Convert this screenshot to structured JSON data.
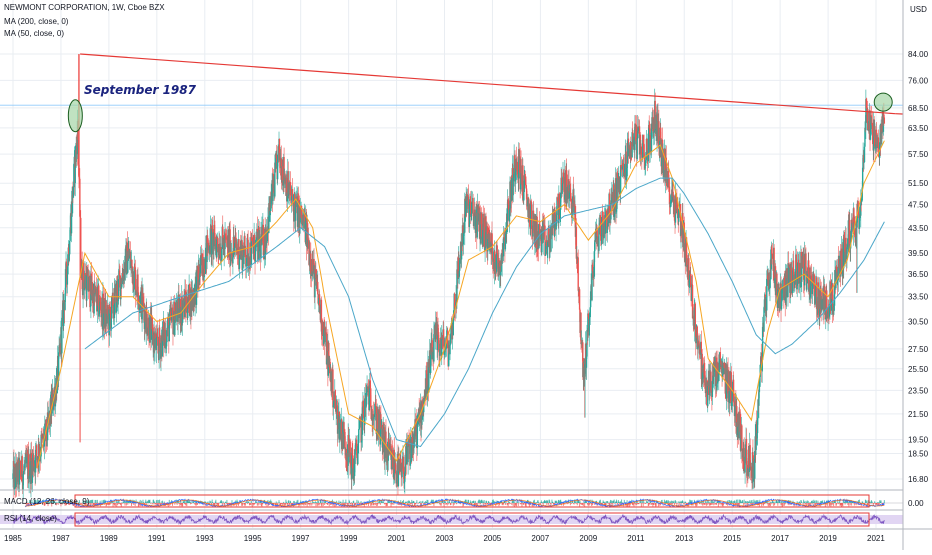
{
  "legend": {
    "symbol": "NEWMONT CORPORATION, 1W, Cboe BZX",
    "ma200": "MA (200, close, 0)",
    "ma50": "MA (50, close, 0)",
    "macd": "MACD (12, 26, close, 9)",
    "rsi": "RSI (14, close)"
  },
  "currency_label": "USD",
  "annotation": {
    "text": "September 1987"
  },
  "colors": {
    "up": "#26a69a",
    "down": "#ef5350",
    "ma200": "#4ba7c9",
    "ma50": "#f6a623",
    "trendline": "#e53935",
    "ellipse_fill": "#a5d6a7",
    "ellipse_stroke": "#1b5e20",
    "rsi_line": "#7e57c2",
    "rsi_band": "#e1d5f3",
    "grid": "#e9edf2"
  },
  "chart_data": {
    "type": "candlestick",
    "price_axis": {
      "scale": "log",
      "ticks": [
        "84.00",
        "76.00",
        "68.50",
        "63.50",
        "57.50",
        "51.50",
        "47.50",
        "43.50",
        "39.50",
        "36.50",
        "33.50",
        "30.50",
        "27.50",
        "25.50",
        "23.50",
        "21.50",
        "19.50",
        "18.50",
        "16.80"
      ]
    },
    "time_axis": {
      "ticks": [
        "1985",
        "1987",
        "1989",
        "1991",
        "1993",
        "1995",
        "1997",
        "1999",
        "2001",
        "2003",
        "2005",
        "2007",
        "2009",
        "2011",
        "2013",
        "2015",
        "2017",
        "2019",
        "2021"
      ]
    },
    "price_path": [
      {
        "year": 1985.0,
        "close": 16.8
      },
      {
        "year": 1985.8,
        "close": 17.8
      },
      {
        "year": 1986.4,
        "close": 19.8
      },
      {
        "year": 1986.9,
        "close": 25.5
      },
      {
        "year": 1987.3,
        "close": 39.5
      },
      {
        "year": 1987.7,
        "close": 63.5
      },
      {
        "year": 1987.85,
        "close": 36.5
      },
      {
        "year": 1988.4,
        "close": 33.5
      },
      {
        "year": 1989.0,
        "close": 30.5
      },
      {
        "year": 1989.8,
        "close": 39.5
      },
      {
        "year": 1990.4,
        "close": 32.5
      },
      {
        "year": 1991.0,
        "close": 27.5
      },
      {
        "year": 1991.8,
        "close": 31.5
      },
      {
        "year": 1992.5,
        "close": 33.5
      },
      {
        "year": 1993.2,
        "close": 41.5
      },
      {
        "year": 1994.0,
        "close": 40.5
      },
      {
        "year": 1994.8,
        "close": 39.5
      },
      {
        "year": 1995.5,
        "close": 41.5
      },
      {
        "year": 1996.1,
        "close": 57.5
      },
      {
        "year": 1996.6,
        "close": 48.5
      },
      {
        "year": 1997.2,
        "close": 43.5
      },
      {
        "year": 1997.9,
        "close": 30.5
      },
      {
        "year": 1998.5,
        "close": 21.5
      },
      {
        "year": 1999.2,
        "close": 17.5
      },
      {
        "year": 1999.8,
        "close": 23.5
      },
      {
        "year": 2000.6,
        "close": 18.5
      },
      {
        "year": 2001.2,
        "close": 17.0
      },
      {
        "year": 2001.9,
        "close": 20.5
      },
      {
        "year": 2002.6,
        "close": 28.5
      },
      {
        "year": 2003.2,
        "close": 27.5
      },
      {
        "year": 2003.9,
        "close": 47.5
      },
      {
        "year": 2004.6,
        "close": 43.5
      },
      {
        "year": 2005.3,
        "close": 37.5
      },
      {
        "year": 2006.0,
        "close": 57.5
      },
      {
        "year": 2006.7,
        "close": 43.5
      },
      {
        "year": 2007.3,
        "close": 40.5
      },
      {
        "year": 2008.0,
        "close": 51.5
      },
      {
        "year": 2008.4,
        "close": 47.5
      },
      {
        "year": 2008.8,
        "close": 24.5
      },
      {
        "year": 2009.3,
        "close": 41.5
      },
      {
        "year": 2010.0,
        "close": 47.5
      },
      {
        "year": 2010.9,
        "close": 61.5
      },
      {
        "year": 2011.4,
        "close": 57.5
      },
      {
        "year": 2011.8,
        "close": 66.5
      },
      {
        "year": 2012.3,
        "close": 51.5
      },
      {
        "year": 2012.9,
        "close": 44.5
      },
      {
        "year": 2013.4,
        "close": 31.5
      },
      {
        "year": 2013.9,
        "close": 23.5
      },
      {
        "year": 2014.5,
        "close": 25.5
      },
      {
        "year": 2015.0,
        "close": 23.5
      },
      {
        "year": 2015.5,
        "close": 18.5
      },
      {
        "year": 2015.9,
        "close": 17.5
      },
      {
        "year": 2016.4,
        "close": 33.5
      },
      {
        "year": 2016.7,
        "close": 39.5
      },
      {
        "year": 2016.9,
        "close": 33.5
      },
      {
        "year": 2017.5,
        "close": 36.5
      },
      {
        "year": 2018.0,
        "close": 37.5
      },
      {
        "year": 2018.7,
        "close": 32.5
      },
      {
        "year": 2019.2,
        "close": 33.5
      },
      {
        "year": 2019.7,
        "close": 40.5
      },
      {
        "year": 2020.1,
        "close": 44.5
      },
      {
        "year": 2020.3,
        "close": 45.5
      },
      {
        "year": 2020.6,
        "close": 68.5
      },
      {
        "year": 2020.9,
        "close": 61.5
      },
      {
        "year": 2021.1,
        "close": 57.5
      },
      {
        "year": 2021.35,
        "close": 66.5
      }
    ],
    "ma200_path": [
      {
        "year": 1988.0,
        "value": 27.5
      },
      {
        "year": 1990.0,
        "value": 31.5
      },
      {
        "year": 1992.0,
        "value": 33.5
      },
      {
        "year": 1994.0,
        "value": 35.5
      },
      {
        "year": 1996.0,
        "value": 40.5
      },
      {
        "year": 1997.0,
        "value": 43.5
      },
      {
        "year": 1998.0,
        "value": 40.5
      },
      {
        "year": 1999.0,
        "value": 33.5
      },
      {
        "year": 2000.0,
        "value": 24.5
      },
      {
        "year": 2001.0,
        "value": 19.5
      },
      {
        "year": 2002.0,
        "value": 19.0
      },
      {
        "year": 2003.0,
        "value": 21.5
      },
      {
        "year": 2004.0,
        "value": 25.5
      },
      {
        "year": 2005.0,
        "value": 31.5
      },
      {
        "year": 2006.0,
        "value": 37.5
      },
      {
        "year": 2007.0,
        "value": 42.5
      },
      {
        "year": 2008.0,
        "value": 45.5
      },
      {
        "year": 2009.0,
        "value": 46.5
      },
      {
        "year": 2010.0,
        "value": 47.5
      },
      {
        "year": 2011.0,
        "value": 50.5
      },
      {
        "year": 2012.0,
        "value": 52.5
      },
      {
        "year": 2012.5,
        "value": 52.5
      },
      {
        "year": 2013.0,
        "value": 49.5
      },
      {
        "year": 2014.0,
        "value": 42.5
      },
      {
        "year": 2015.0,
        "value": 35.5
      },
      {
        "year": 2016.0,
        "value": 29.0
      },
      {
        "year": 2016.8,
        "value": 27.0
      },
      {
        "year": 2017.5,
        "value": 28.0
      },
      {
        "year": 2018.5,
        "value": 30.5
      },
      {
        "year": 2019.5,
        "value": 34.0
      },
      {
        "year": 2020.5,
        "value": 38.5
      },
      {
        "year": 2021.35,
        "value": 44.5
      }
    ],
    "ma50_path": [
      {
        "year": 1986.0,
        "value": 17.5
      },
      {
        "year": 1987.0,
        "value": 25.5
      },
      {
        "year": 1988.0,
        "value": 39.5
      },
      {
        "year": 1989.0,
        "value": 33.5
      },
      {
        "year": 1990.0,
        "value": 33.5
      },
      {
        "year": 1991.0,
        "value": 30.5
      },
      {
        "year": 1992.0,
        "value": 31.5
      },
      {
        "year": 1993.0,
        "value": 35.5
      },
      {
        "year": 1994.0,
        "value": 39.5
      },
      {
        "year": 1995.0,
        "value": 40.5
      },
      {
        "year": 1996.0,
        "value": 44.5
      },
      {
        "year": 1996.8,
        "value": 48.5
      },
      {
        "year": 1997.5,
        "value": 43.5
      },
      {
        "year": 1998.0,
        "value": 33.5
      },
      {
        "year": 1999.0,
        "value": 21.5
      },
      {
        "year": 2000.0,
        "value": 20.5
      },
      {
        "year": 2001.0,
        "value": 18.0
      },
      {
        "year": 2002.0,
        "value": 21.5
      },
      {
        "year": 2003.0,
        "value": 27.5
      },
      {
        "year": 2004.0,
        "value": 38.5
      },
      {
        "year": 2005.0,
        "value": 40.5
      },
      {
        "year": 2006.0,
        "value": 45.5
      },
      {
        "year": 2007.0,
        "value": 44.5
      },
      {
        "year": 2008.0,
        "value": 47.5
      },
      {
        "year": 2009.0,
        "value": 41.5
      },
      {
        "year": 2010.0,
        "value": 46.5
      },
      {
        "year": 2011.0,
        "value": 55.5
      },
      {
        "year": 2012.0,
        "value": 59.5
      },
      {
        "year": 2012.5,
        "value": 52.5
      },
      {
        "year": 2013.5,
        "value": 35.5
      },
      {
        "year": 2014.0,
        "value": 26.5
      },
      {
        "year": 2015.0,
        "value": 23.5
      },
      {
        "year": 2015.8,
        "value": 21.0
      },
      {
        "year": 2016.5,
        "value": 29.5
      },
      {
        "year": 2017.0,
        "value": 34.5
      },
      {
        "year": 2018.0,
        "value": 36.5
      },
      {
        "year": 2019.0,
        "value": 33.5
      },
      {
        "year": 2019.8,
        "value": 38.5
      },
      {
        "year": 2020.5,
        "value": 51.5
      },
      {
        "year": 2021.35,
        "value": 60.5
      }
    ],
    "trendline": {
      "start": {
        "year": 1987.8,
        "value": 84.0
      },
      "end": {
        "year": 2021.8,
        "value": 67.0
      }
    },
    "highlight_ellipses": [
      {
        "year": 1987.6,
        "value": 66.5
      },
      {
        "year": 2021.3,
        "value": 70.0
      }
    ],
    "macd": {
      "zero_label": "0.00"
    }
  }
}
